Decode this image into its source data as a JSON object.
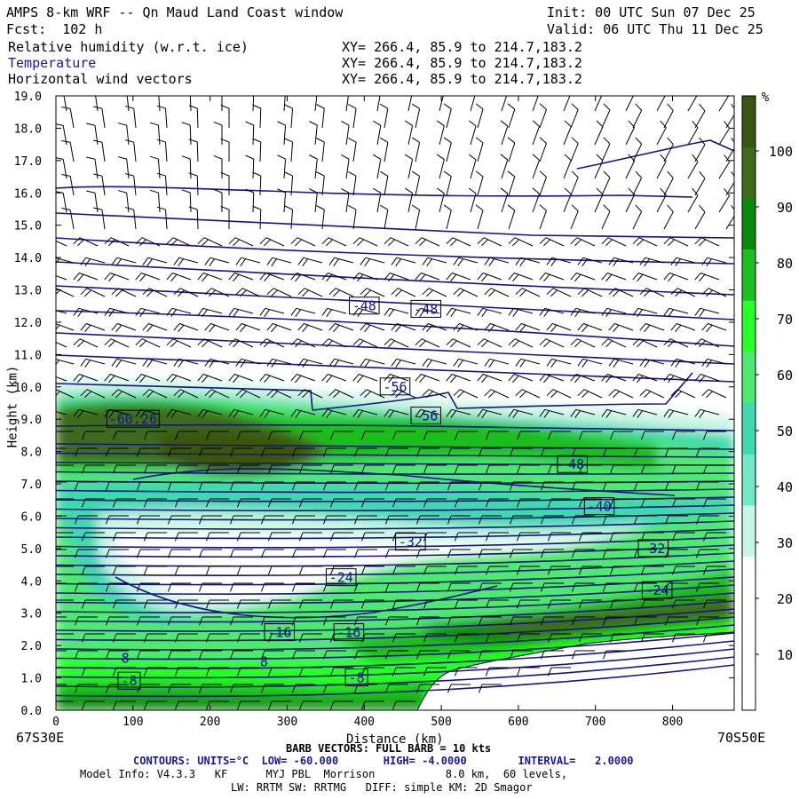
{
  "header": {
    "title": "AMPS 8-km WRF -- Qn Maud Land Coast window",
    "init": "Init: 00 UTC Sun 07 Dec 25",
    "fcst": "Fcst:  102 h",
    "valid": "Valid: 06 UTC Thu 11 Dec 25"
  },
  "fields": [
    {
      "name": "Relative humidity (w.r.t. ice)",
      "xy": "XY= 266.4, 85.9 to 214.7,183.2",
      "color": "#000000"
    },
    {
      "name": "Temperature",
      "xy": "XY= 266.4, 85.9 to 214.7,183.2",
      "color": "#1a1a8c"
    },
    {
      "name": "Horizontal wind vectors",
      "xy": "XY= 266.4, 85.9 to 214.7,183.2",
      "color": "#000000"
    }
  ],
  "footer": {
    "left_coord": "67S30E",
    "right_coord": "70S50E",
    "barb": "BARB VECTORS: FULL BARB = 10 kts",
    "contours": "CONTOURS: UNITS=°C  LOW= -60.000       HIGH= -4.0000        INTERVAL=   2.0000",
    "model": "Model Info: V4.3.3   KF      MYJ PBL  Morrison           8.0 km,  60 levels,",
    "physics": "LW: RRTM SW: RRTMG   DIFF: simple KM: 2D Smagor"
  },
  "chart_data": {
    "type": "contour",
    "xlabel": "Distance (km)",
    "ylabel": "Height (km)",
    "xlim": [
      0,
      880
    ],
    "ylim": [
      0,
      19
    ],
    "x_ticks": [
      0,
      100,
      200,
      300,
      400,
      500,
      600,
      700,
      800
    ],
    "y_ticks": [
      "0.0",
      "1.0",
      "2.0",
      "3.0",
      "4.0",
      "5.0",
      "6.0",
      "7.0",
      "8.0",
      "9.0",
      "10.0",
      "11.0",
      "12.0",
      "13.0",
      "14.0",
      "15.0",
      "16.0",
      "17.0",
      "18.0",
      "19.0"
    ],
    "colorbar": {
      "unit": "%",
      "ticks": [
        "10",
        "20",
        "30",
        "40",
        "50",
        "60",
        "70",
        "80",
        "90",
        "100"
      ],
      "colors": [
        "#ffffff",
        "#ffffff",
        "#ffffff",
        "#c8f5e6",
        "#70e8c8",
        "#40d8b0",
        "#50e870",
        "#28ff28",
        "#1fbe1f",
        "#0a8a0a",
        "#3d6b1a",
        "#3a5410"
      ]
    },
    "contour_labels": [
      {
        "text": "-48",
        "x": 400,
        "y": 12.5
      },
      {
        "text": "-48",
        "x": 480,
        "y": 12.4
      },
      {
        "text": "-56",
        "x": 440,
        "y": 10.0
      },
      {
        "text": "-56",
        "x": 480,
        "y": 9.1
      },
      {
        "text": "-60.26",
        "x": 100,
        "y": 9.0
      },
      {
        "text": "-48",
        "x": 670,
        "y": 7.6
      },
      {
        "text": "-40",
        "x": 705,
        "y": 6.3
      },
      {
        "text": "-32",
        "x": 460,
        "y": 5.2
      },
      {
        "text": "-32",
        "x": 775,
        "y": 5.0
      },
      {
        "text": "-24",
        "x": 370,
        "y": 4.1
      },
      {
        "text": "-24",
        "x": 780,
        "y": 3.7
      },
      {
        "text": "-16",
        "x": 290,
        "y": 2.4
      },
      {
        "text": "-16",
        "x": 380,
        "y": 2.4
      },
      {
        "text": "-8",
        "x": 95,
        "y": 0.9
      },
      {
        "text": "-8",
        "x": 390,
        "y": 1.0
      }
    ],
    "loose_labels": [
      {
        "text": "8",
        "x": 90,
        "y": 1.6
      },
      {
        "text": "8",
        "x": 270,
        "y": 1.5
      }
    ]
  }
}
